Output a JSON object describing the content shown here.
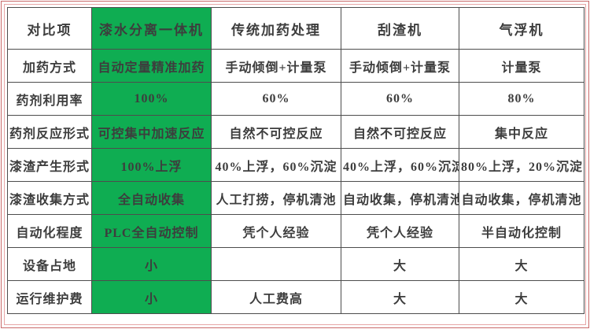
{
  "style": {
    "highlight_green": "#0fad52",
    "frame_outer_pink": "#c96a6a",
    "frame_inner_pink": "#e6a7a7",
    "grid_gray": "#4d4d4d",
    "text_color": "#3d3d3d"
  },
  "chart_data": {
    "type": "table",
    "title": "",
    "columns": [
      "对比项",
      "漆水分离一体机",
      "传统加药处理",
      "刮渣机",
      "气浮机"
    ],
    "highlight_column": "漆水分离一体机",
    "rows": [
      {
        "label": "加药方式",
        "cells": [
          "自动定量精准加药",
          "手动倾倒+计量泵",
          "手动倾倒+计量泵",
          "计量泵"
        ]
      },
      {
        "label": "药剂利用率",
        "cells": [
          "100%",
          "60%",
          "60%",
          "80%"
        ]
      },
      {
        "label": "药剂反应形式",
        "cells": [
          "可控集中加速反应",
          "自然不可控反应",
          "自然不可控反应",
          "集中反应"
        ]
      },
      {
        "label": "漆渣产生形式",
        "cells": [
          "100%上浮",
          "40%上浮，60%沉淀",
          "40%上浮，60%沉淀",
          "80%上浮，20%沉淀"
        ]
      },
      {
        "label": "漆渣收集方式",
        "cells": [
          "全自动收集",
          "人工打捞，停机清池",
          "自动收集，停机清池",
          "自动收集，停机清池"
        ]
      },
      {
        "label": "自动化程度",
        "cells": [
          "PLC全自动控制",
          "凭个人经验",
          "凭个人经验",
          "半自动化控制"
        ]
      },
      {
        "label": "设备占地",
        "cells": [
          "小",
          "",
          "大",
          "大"
        ]
      },
      {
        "label": "运行维护费",
        "cells": [
          "小",
          "人工费高",
          "大",
          "大"
        ]
      }
    ]
  }
}
